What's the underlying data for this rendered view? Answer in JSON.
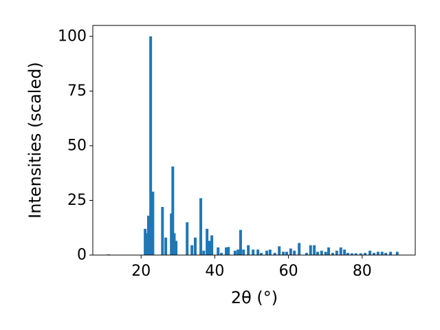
{
  "chart_data": {
    "type": "bar",
    "x_label": "2θ (°)",
    "y_label": "Intensities (scaled)",
    "color": "#1f77b4",
    "x": [
      11.2,
      21.1,
      21.5,
      22.0,
      22.6,
      23.2,
      25.8,
      26.7,
      28.2,
      28.6,
      29.0,
      29.5,
      32.5,
      33.8,
      34.7,
      36.2,
      37.0,
      37.9,
      38.6,
      39.2,
      40.9,
      41.8,
      43.1,
      43.7,
      45.5,
      46.3,
      47.0,
      47.8,
      49.1,
      50.4,
      51.7,
      52.6,
      54.1,
      55.0,
      56.3,
      57.5,
      58.6,
      59.5,
      60.6,
      61.6,
      62.9,
      64.9,
      66.0,
      67.0,
      67.9,
      69.0,
      70.1,
      70.9,
      72.0,
      73.1,
      74.2,
      75.2,
      76.1,
      77.2,
      78.3,
      79.6,
      80.8,
      82.1,
      83.2,
      84.3,
      85.4,
      86.4,
      87.7,
      89.5
    ],
    "values": [
      0.3,
      12,
      10,
      18,
      100,
      29,
      22,
      8,
      19,
      40.5,
      10,
      6.5,
      15,
      4.5,
      8,
      26,
      2,
      12,
      6.5,
      9,
      3.5,
      1,
      3.5,
      3.7,
      2,
      2.5,
      11.5,
      2.5,
      4.5,
      2.5,
      2.5,
      1,
      2,
      2.5,
      1,
      4,
      1.5,
      1.5,
      3,
      2,
      5.5,
      1,
      4.5,
      4.5,
      1.5,
      2,
      1.5,
      3.5,
      1,
      2,
      3.5,
      2.5,
      1,
      0.8,
      0.8,
      0.8,
      1,
      2,
      1,
      1.5,
      1.5,
      1,
      1.5,
      1.5
    ],
    "xlim": [
      6.9,
      94.4
    ],
    "ylim": [
      0,
      105
    ],
    "xticks": [
      20,
      40,
      60,
      80
    ],
    "yticks": [
      0,
      25,
      50,
      75,
      100
    ],
    "grid": false
  }
}
